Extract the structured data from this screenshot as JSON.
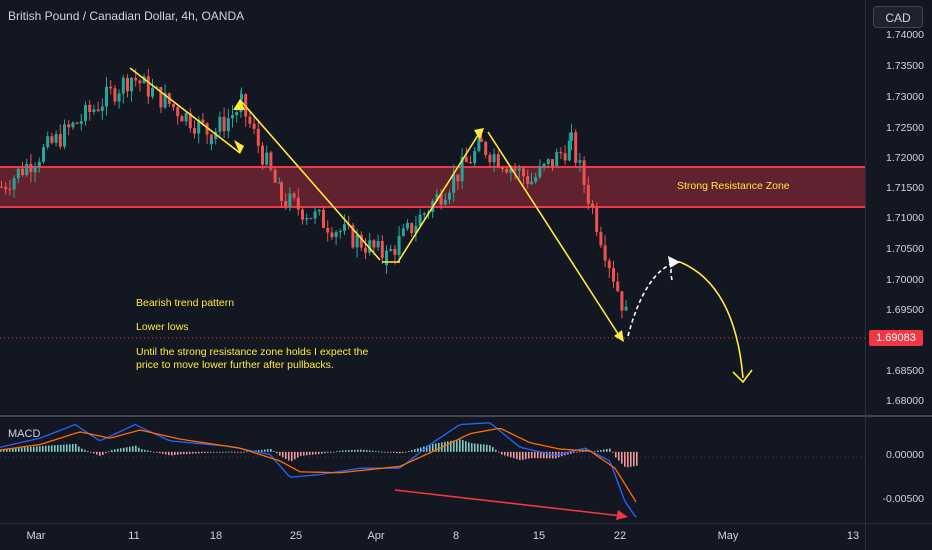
{
  "header": {
    "symbol_title": "British Pound / Canadian Dollar, 4h, OANDA",
    "currency_button": "CAD"
  },
  "price_axis": {
    "ticks": [
      "1.74000",
      "1.73500",
      "1.73000",
      "1.72500",
      "1.72000",
      "1.71500",
      "1.71000",
      "1.70500",
      "1.70000",
      "1.69500",
      "1.68500",
      "1.68000"
    ],
    "last_price": "1.69083"
  },
  "macd_axis": {
    "ticks": [
      "0.00000",
      "-0.00500"
    ]
  },
  "time_axis": {
    "labels": [
      "Mar",
      "11",
      "18",
      "25",
      "Apr",
      "8",
      "15",
      "22",
      "May",
      "13"
    ]
  },
  "annotations": {
    "zone_label": "Strong Resistance Zone",
    "trend_pattern": "Bearish trend pattern",
    "lower_lows": "Lower lows",
    "thesis_line1": "Until the strong resistance zone holds I expect the",
    "thesis_line2": "price to move lower further after pullbacks."
  },
  "indicator": {
    "name": "MACD"
  },
  "colors": {
    "background": "#131722",
    "bull": "#26a69a",
    "bear": "#ef5350",
    "zone": "#f23645",
    "drawing": "#ffeb3b",
    "macd_line": "#2962ff",
    "signal_line": "#ff6d00"
  },
  "chart_data": {
    "type": "candlestick",
    "timeframe": "4h",
    "price_range": [
      1.678,
      1.7425
    ],
    "resistance_zone": [
      1.7122,
      1.7188
    ],
    "close_path": [
      {
        "x": "Mar",
        "close": 1.7155
      },
      {
        "x": "Mar 11",
        "close": 1.7345
      },
      {
        "x": "Mar 18",
        "close": 1.7245
      },
      {
        "x": "Mar 20",
        "close": 1.7295
      },
      {
        "x": "Mar 25",
        "close": 1.7135
      },
      {
        "x": "Apr",
        "close": 1.7035
      },
      {
        "x": "Apr 8",
        "close": 1.7225
      },
      {
        "x": "Apr 15",
        "close": 1.7165
      },
      {
        "x": "Apr 18",
        "close": 1.723
      },
      {
        "x": "Apr 22",
        "close": 1.6915
      }
    ],
    "macd_range": [
      -0.0075,
      0.0035
    ]
  }
}
